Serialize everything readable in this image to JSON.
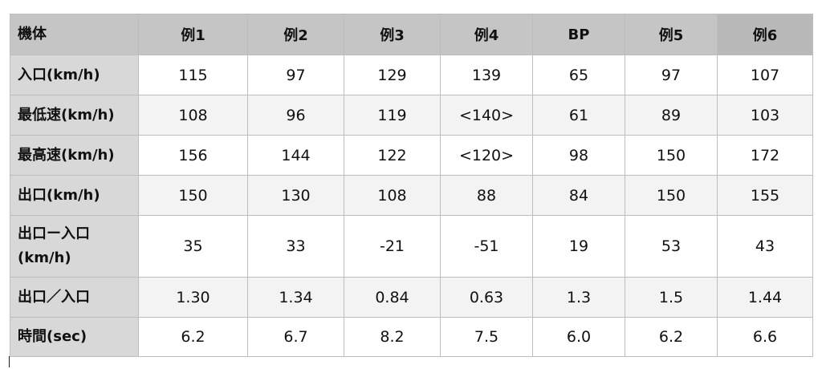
{
  "table": {
    "header": [
      "機体",
      "例1",
      "例2",
      "例3",
      "例4",
      "BP",
      "例5",
      "例6"
    ],
    "rows": [
      {
        "label": "入口(km/h)",
        "cells": [
          "115",
          "97",
          "129",
          "139",
          "65",
          "97",
          "107"
        ]
      },
      {
        "label": "最低速(km/h)",
        "cells": [
          "108",
          "96",
          "119",
          "<140>",
          "61",
          "89",
          "103"
        ]
      },
      {
        "label": "最高速(km/h)",
        "cells": [
          "156",
          "144",
          "122",
          "<120>",
          "98",
          "150",
          "172"
        ]
      },
      {
        "label": "出口(km/h)",
        "cells": [
          "150",
          "130",
          "108",
          "88",
          "84",
          "150",
          "155"
        ]
      },
      {
        "label_line1": "出口ー入口",
        "label_line2": "(km/h)",
        "cells": [
          "35",
          "33",
          "-21",
          "-51",
          "19",
          "53",
          "43"
        ]
      },
      {
        "label": "出口／入口",
        "cells": [
          "1.30",
          "1.34",
          "0.84",
          "0.63",
          "1.3",
          "1.5",
          "1.44"
        ]
      },
      {
        "label": "時間(sec)",
        "cells": [
          "6.2",
          "6.7",
          "8.2",
          "7.5",
          "6.0",
          "6.2",
          "6.6"
        ]
      }
    ]
  },
  "colors": {
    "header_bg": "#c5c5c5",
    "row_label_bg": "#d8d8d8",
    "stripe_bg": "#f3f3f3",
    "border": "#bdbdbd"
  }
}
